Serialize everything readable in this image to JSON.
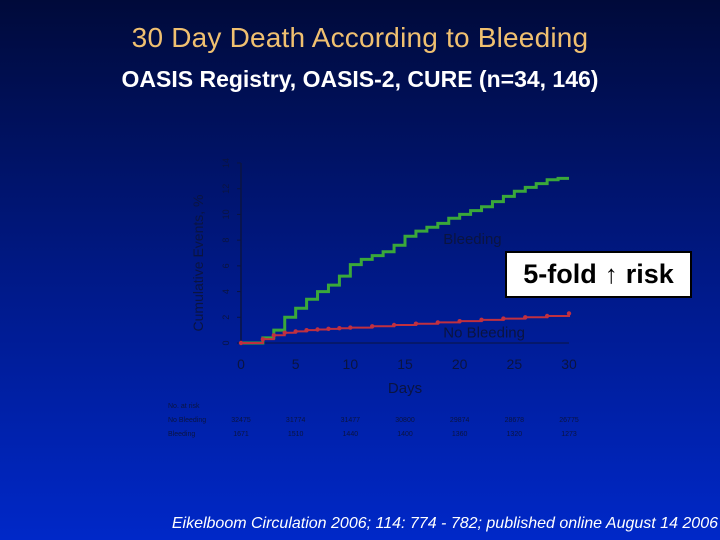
{
  "title": "30 Day Death According to Bleeding",
  "subtitle": "OASIS Registry, OASIS-2, CURE (n=34, 146)",
  "callout": {
    "text_before": "5-fold",
    "arrow": "↑",
    "text_after": "risk"
  },
  "citation": "Eikelboom Circulation 2006; 114: 774 - 782; published online August 14 2006",
  "chart_data": {
    "type": "line",
    "ylabel": "Cumulative Events, %",
    "xlabel": "Days",
    "xlim": [
      0,
      30
    ],
    "ylim": [
      0,
      14
    ],
    "x_ticks": [
      0,
      5,
      10,
      15,
      20,
      25,
      30
    ],
    "y_ticks": [
      0,
      2,
      4,
      6,
      8,
      10,
      12,
      14
    ],
    "colors": {
      "bleeding": "#3aa83a",
      "no_bleeding": "#c03040",
      "axis": "#0a1440",
      "label": "#0a1440"
    },
    "series": [
      {
        "name": "Bleeding",
        "x": [
          0,
          2,
          3,
          4,
          5,
          6,
          7,
          8,
          9,
          10,
          11,
          12,
          13,
          14,
          15,
          16,
          17,
          18,
          19,
          20,
          21,
          22,
          23,
          24,
          25,
          26,
          27,
          28,
          29,
          30
        ],
        "y": [
          0,
          0.4,
          1.0,
          2.0,
          2.7,
          3.4,
          4.0,
          4.5,
          5.2,
          6.1,
          6.5,
          6.8,
          7.1,
          7.6,
          8.3,
          8.7,
          9.0,
          9.3,
          9.7,
          10.0,
          10.3,
          10.6,
          11.0,
          11.4,
          11.8,
          12.1,
          12.4,
          12.7,
          12.8,
          12.8
        ]
      },
      {
        "name": "No Bleeding",
        "x": [
          0,
          2,
          3,
          4,
          5,
          6,
          7,
          8,
          9,
          10,
          12,
          14,
          16,
          18,
          20,
          22,
          24,
          26,
          28,
          30
        ],
        "y": [
          0,
          0.3,
          0.6,
          0.8,
          0.9,
          1.0,
          1.05,
          1.1,
          1.15,
          1.2,
          1.3,
          1.4,
          1.5,
          1.6,
          1.7,
          1.8,
          1.9,
          2.0,
          2.1,
          2.3
        ]
      }
    ],
    "at_risk": {
      "header": [
        "No. at risk",
        "No Bleeding",
        "Bleeding"
      ],
      "no_bleeding": [
        "32475",
        "31774",
        "31477",
        "30800",
        "29874",
        "28678",
        "26775"
      ],
      "bleeding": [
        "1671",
        "1510",
        "1440",
        "1400",
        "1360",
        "1320",
        "1273"
      ]
    }
  }
}
